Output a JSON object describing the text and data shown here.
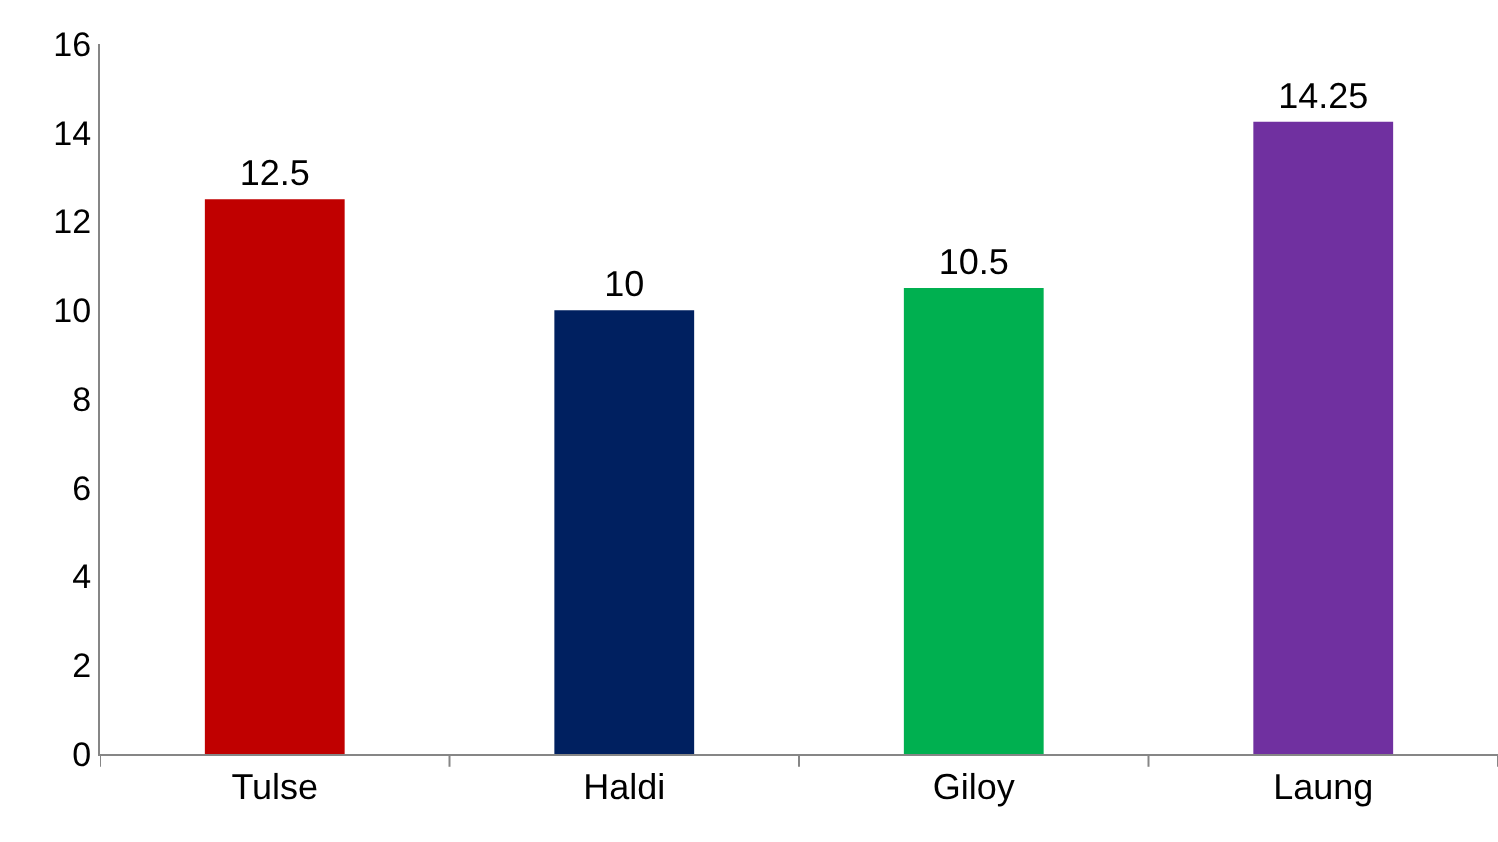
{
  "chart_data": {
    "type": "bar",
    "categories": [
      "Tulse",
      "Haldi",
      "Giloy",
      "Laung"
    ],
    "values": [
      12.5,
      10,
      10.5,
      14.25
    ],
    "colors": [
      "#c00000",
      "#002060",
      "#00b050",
      "#7030a0"
    ],
    "ylim": [
      0,
      16
    ],
    "yticks": [
      0,
      2,
      4,
      6,
      8,
      10,
      12,
      14,
      16
    ],
    "data_labels": true
  }
}
